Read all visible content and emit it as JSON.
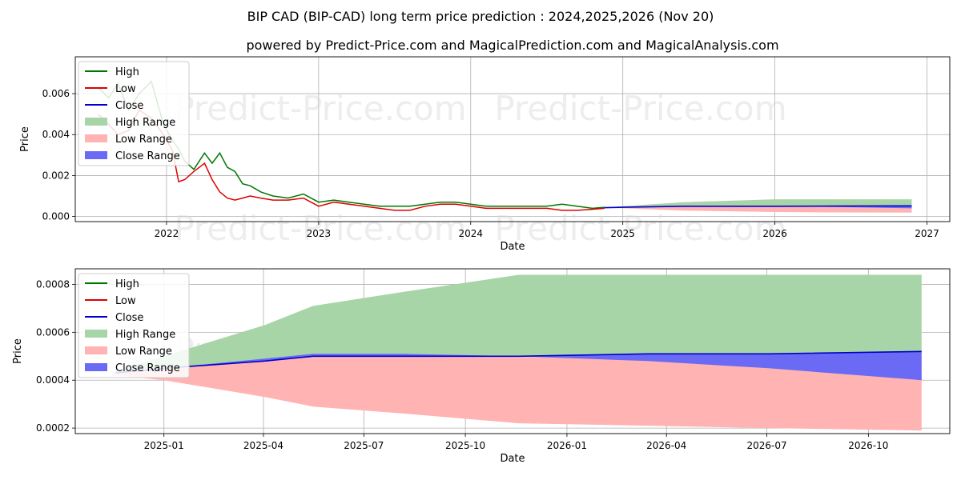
{
  "title": "BIP CAD (BIP-CAD) long term price prediction : 2024,2025,2026 (Nov 20)",
  "subtitle": "powered by Predict-Price.com and MagicalPrediction.com and MagicalAnalysis.com",
  "watermark": "Predict-Price.com",
  "colors": {
    "high": "#007700",
    "low": "#dd0000",
    "close": "#0000cc",
    "high_range": "#a8d5a8",
    "low_range": "#ffb3b3",
    "close_range": "#6a6af5"
  },
  "legend": [
    "High",
    "Low",
    "Close",
    "High Range",
    "Low Range",
    "Close Range"
  ],
  "chart_data": [
    {
      "type": "line",
      "panel": "top",
      "xlabel": "Date",
      "ylabel": "Price",
      "xlim": [
        2021.4,
        2027.15
      ],
      "ylim": [
        -0.00025,
        0.0078
      ],
      "x_ticks": [
        {
          "v": 2022,
          "label": "2022"
        },
        {
          "v": 2023,
          "label": "2023"
        },
        {
          "v": 2024,
          "label": "2024"
        },
        {
          "v": 2025,
          "label": "2025"
        },
        {
          "v": 2026,
          "label": "2026"
        },
        {
          "v": 2027,
          "label": "2027"
        }
      ],
      "y_ticks": [
        {
          "v": 0.0,
          "label": "0.000"
        },
        {
          "v": 0.002,
          "label": "0.002"
        },
        {
          "v": 0.004,
          "label": "0.004"
        },
        {
          "v": 0.006,
          "label": "0.006"
        }
      ],
      "history": {
        "x": [
          2021.55,
          2021.62,
          2021.68,
          2021.75,
          2021.82,
          2021.9,
          2021.98,
          2022.04,
          2022.08,
          2022.12,
          2022.18,
          2022.25,
          2022.3,
          2022.35,
          2022.4,
          2022.45,
          2022.5,
          2022.55,
          2022.62,
          2022.7,
          2022.8,
          2022.9,
          2023.0,
          2023.1,
          2023.2,
          2023.3,
          2023.4,
          2023.5,
          2023.6,
          2023.7,
          2023.8,
          2023.9,
          2024.0,
          2024.1,
          2024.2,
          2024.3,
          2024.4,
          2024.5,
          2024.6,
          2024.7,
          2024.8,
          2024.88
        ],
        "high": [
          0.0063,
          0.0058,
          0.0065,
          0.0052,
          0.006,
          0.0066,
          0.0045,
          0.0037,
          0.0033,
          0.0027,
          0.0023,
          0.0031,
          0.0026,
          0.0031,
          0.0024,
          0.0022,
          0.0016,
          0.0015,
          0.0012,
          0.001,
          0.0009,
          0.0011,
          0.0007,
          0.0008,
          0.0007,
          0.0006,
          0.0005,
          0.0005,
          0.0005,
          0.0006,
          0.0007,
          0.0007,
          0.0006,
          0.0005,
          0.0005,
          0.0005,
          0.0005,
          0.0005,
          0.0006,
          0.0005,
          0.0004,
          0.00045
        ],
        "low": [
          0.005,
          0.0045,
          0.004,
          0.0042,
          0.0052,
          0.0048,
          0.004,
          0.0032,
          0.0017,
          0.0018,
          0.0022,
          0.0026,
          0.0018,
          0.0012,
          0.0009,
          0.0008,
          0.0009,
          0.001,
          0.0009,
          0.0008,
          0.0008,
          0.0009,
          0.0005,
          0.0007,
          0.0006,
          0.0005,
          0.0004,
          0.0003,
          0.0003,
          0.0005,
          0.0006,
          0.0006,
          0.0005,
          0.0004,
          0.0004,
          0.0004,
          0.0004,
          0.0004,
          0.0003,
          0.0003,
          0.00035,
          0.0004
        ]
      },
      "forecast": {
        "x": [
          2024.88,
          2025.0,
          2025.4,
          2026.0,
          2026.4,
          2026.9
        ],
        "close": [
          0.00043,
          0.00045,
          0.0005,
          0.0005,
          0.00051,
          0.00052
        ],
        "high_upper": [
          0.00044,
          0.0005,
          0.0007,
          0.00084,
          0.00084,
          0.00084
        ],
        "low_lower": [
          0.00042,
          0.0004,
          0.00029,
          0.00022,
          0.0002,
          0.00019
        ],
        "close_upper": [
          0.00043,
          0.00045,
          0.00051,
          0.0005,
          0.00051,
          0.00052
        ],
        "close_lower": [
          0.00043,
          0.00045,
          0.0005,
          0.0005,
          0.00046,
          0.0004
        ]
      }
    },
    {
      "type": "area",
      "panel": "bottom",
      "xlabel": "Date",
      "ylabel": "Price",
      "xlim": [
        2024.78,
        2026.95
      ],
      "ylim": [
        0.000177,
        0.000865
      ],
      "x_ticks": [
        {
          "v": 2025.0,
          "label": "2025-01"
        },
        {
          "v": 2025.247,
          "label": "2025-04"
        },
        {
          "v": 2025.496,
          "label": "2025-07"
        },
        {
          "v": 2025.748,
          "label": "2025-10"
        },
        {
          "v": 2026.0,
          "label": "2026-01"
        },
        {
          "v": 2026.247,
          "label": "2026-04"
        },
        {
          "v": 2026.496,
          "label": "2026-07"
        },
        {
          "v": 2026.748,
          "label": "2026-10"
        }
      ],
      "y_ticks": [
        {
          "v": 0.0002,
          "label": "0.0002"
        },
        {
          "v": 0.0004,
          "label": "0.0004"
        },
        {
          "v": 0.0006,
          "label": "0.0006"
        },
        {
          "v": 0.0008,
          "label": "0.0008"
        }
      ],
      "forecast": {
        "x": [
          2024.88,
          2025.0,
          2025.25,
          2025.37,
          2025.6,
          2025.88,
          2026.2,
          2026.5,
          2026.88
        ],
        "close": [
          0.00043,
          0.00045,
          0.00048,
          0.0005,
          0.0005,
          0.0005,
          0.00051,
          0.00051,
          0.00052
        ],
        "high_upper": [
          0.00044,
          0.0005,
          0.00063,
          0.00071,
          0.00077,
          0.00084,
          0.00084,
          0.00084,
          0.00084
        ],
        "low_lower": [
          0.00042,
          0.0004,
          0.00033,
          0.00029,
          0.00026,
          0.00022,
          0.00021,
          0.0002,
          0.00019
        ],
        "close_upper": [
          0.00043,
          0.00045,
          0.00049,
          0.00051,
          0.00051,
          0.0005,
          0.00051,
          0.00051,
          0.00052
        ],
        "close_lower": [
          0.00043,
          0.00045,
          0.00048,
          0.0005,
          0.0005,
          0.0005,
          0.00048,
          0.00045,
          0.0004
        ]
      }
    }
  ]
}
